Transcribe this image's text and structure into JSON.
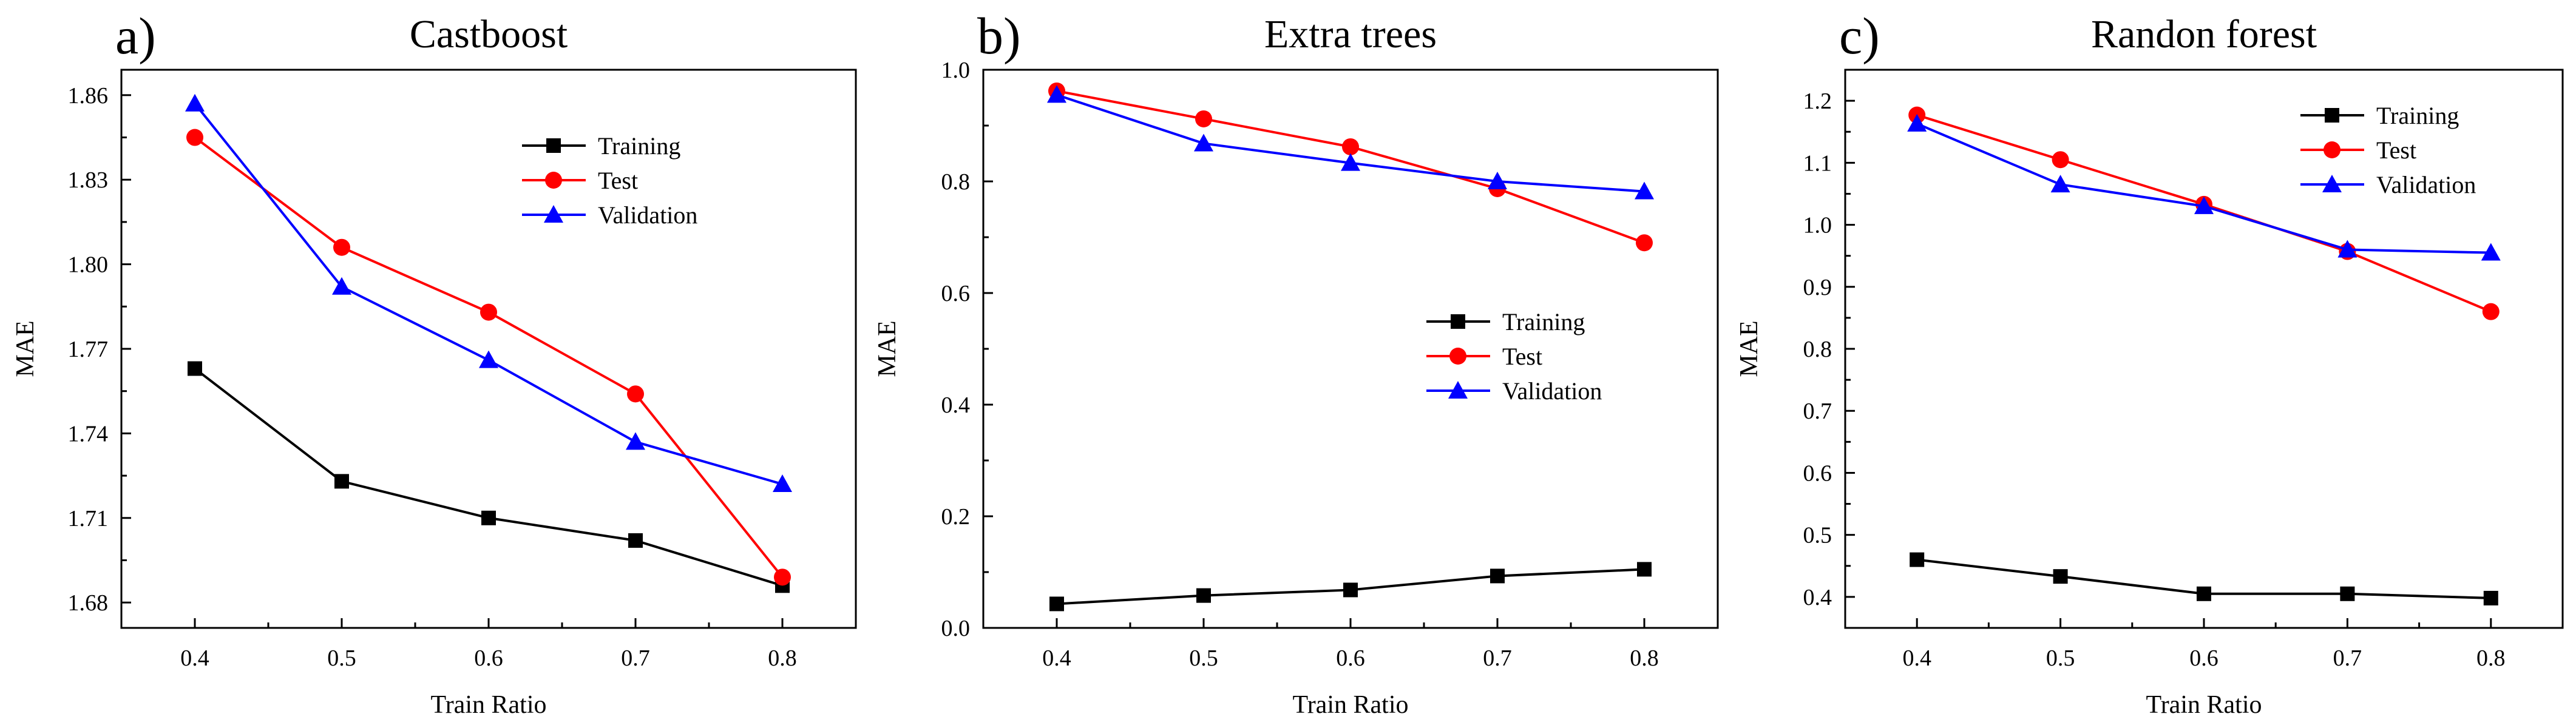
{
  "chart_data": [
    {
      "type": "line",
      "panel_label": "a)",
      "title": "Castboost",
      "xlabel": "Train Ratio",
      "ylabel": "MAE",
      "x": [
        0.4,
        0.5,
        0.6,
        0.7,
        0.8
      ],
      "xticks": [
        "0.4",
        "0.5",
        "0.6",
        "0.7",
        "0.8"
      ],
      "xlim": [
        0.35,
        0.85
      ],
      "yticks": [
        "1.68",
        "1.71",
        "1.74",
        "1.77",
        "1.80",
        "1.83",
        "1.86"
      ],
      "ylim": [
        1.671,
        1.869
      ],
      "legend_position": "top-right",
      "series": [
        {
          "name": "Training",
          "marker": "square",
          "color": "#000000",
          "values": [
            1.763,
            1.723,
            1.71,
            1.702,
            1.686
          ]
        },
        {
          "name": "Test",
          "marker": "circle",
          "color": "#ff0000",
          "values": [
            1.845,
            1.806,
            1.783,
            1.754,
            1.689
          ]
        },
        {
          "name": "Validation",
          "marker": "triangle",
          "color": "#0000ff",
          "values": [
            1.857,
            1.792,
            1.766,
            1.737,
            1.722
          ]
        }
      ]
    },
    {
      "type": "line",
      "panel_label": "b)",
      "title": "Extra trees",
      "xlabel": "Train Ratio",
      "ylabel": "MAE",
      "x": [
        0.4,
        0.5,
        0.6,
        0.7,
        0.8
      ],
      "xticks": [
        "0.4",
        "0.5",
        "0.6",
        "0.7",
        "0.8"
      ],
      "xlim": [
        0.35,
        0.85
      ],
      "yticks": [
        "0.0",
        "0.2",
        "0.4",
        "0.6",
        "0.8",
        "1.0"
      ],
      "ylim": [
        0.0,
        1.0
      ],
      "legend_position": "center-right",
      "series": [
        {
          "name": "Training",
          "marker": "square",
          "color": "#000000",
          "values": [
            0.043,
            0.058,
            0.068,
            0.093,
            0.105
          ]
        },
        {
          "name": "Test",
          "marker": "circle",
          "color": "#ff0000",
          "values": [
            0.962,
            0.912,
            0.862,
            0.787,
            0.69
          ]
        },
        {
          "name": "Validation",
          "marker": "triangle",
          "color": "#0000ff",
          "values": [
            0.955,
            0.868,
            0.833,
            0.8,
            0.782
          ]
        }
      ]
    },
    {
      "type": "line",
      "panel_label": "c)",
      "title": "Randon forest",
      "xlabel": "Train Ratio",
      "ylabel": "MAE",
      "x": [
        0.4,
        0.5,
        0.6,
        0.7,
        0.8
      ],
      "xticks": [
        "0.4",
        "0.5",
        "0.6",
        "0.7",
        "0.8"
      ],
      "xlim": [
        0.35,
        0.85
      ],
      "yticks": [
        "0.4",
        "0.5",
        "0.6",
        "0.7",
        "0.8",
        "0.9",
        "1.0",
        "1.1",
        "1.2"
      ],
      "ylim": [
        0.35,
        1.25
      ],
      "legend_position": "top-right",
      "series": [
        {
          "name": "Training",
          "marker": "square",
          "color": "#000000",
          "values": [
            0.46,
            0.433,
            0.405,
            0.405,
            0.398
          ]
        },
        {
          "name": "Test",
          "marker": "circle",
          "color": "#ff0000",
          "values": [
            1.177,
            1.105,
            1.033,
            0.957,
            0.86
          ]
        },
        {
          "name": "Validation",
          "marker": "triangle",
          "color": "#0000ff",
          "values": [
            1.163,
            1.065,
            1.03,
            0.96,
            0.955
          ]
        }
      ]
    }
  ]
}
